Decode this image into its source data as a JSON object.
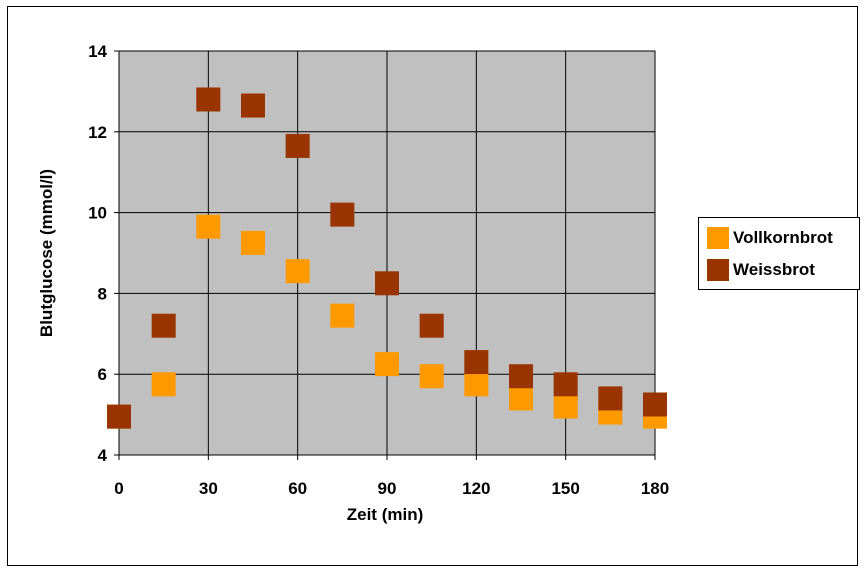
{
  "chart_data": {
    "type": "scatter",
    "xlabel": "Zeit (min)",
    "ylabel": "Blutglucose (mmol/l)",
    "xlim": [
      0,
      180
    ],
    "ylim": [
      4,
      14
    ],
    "xticks": [
      0,
      30,
      60,
      90,
      120,
      150,
      180
    ],
    "yticks": [
      4,
      6,
      8,
      10,
      12,
      14
    ],
    "grid": true,
    "legend": "right",
    "plot_background": "#c0c0c0",
    "series": [
      {
        "name": "Vollkornbrot",
        "color": "#ff9900",
        "x": [
          0,
          15,
          30,
          45,
          60,
          75,
          90,
          105,
          120,
          135,
          150,
          165,
          180
        ],
        "y": [
          4.95,
          5.75,
          9.65,
          9.25,
          8.55,
          7.45,
          6.25,
          5.95,
          5.75,
          5.4,
          5.2,
          5.05,
          4.95
        ]
      },
      {
        "name": "Weissbrot",
        "color": "#993300",
        "x": [
          0,
          15,
          30,
          45,
          60,
          75,
          90,
          105,
          120,
          135,
          150,
          165,
          180
        ],
        "y": [
          4.95,
          7.2,
          12.8,
          12.65,
          11.65,
          9.95,
          8.25,
          7.2,
          6.3,
          5.95,
          5.75,
          5.4,
          5.25
        ]
      }
    ]
  }
}
